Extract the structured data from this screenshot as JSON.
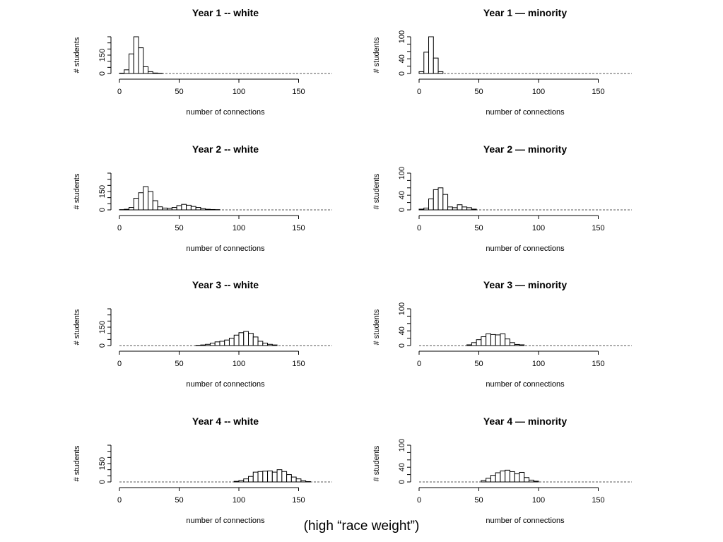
{
  "caption": "(high “race weight”)",
  "chart_data": [
    {
      "type": "bar",
      "title": "Year 1  --  white",
      "xlabel": "number of connections",
      "ylabel": "# students",
      "xticks": [
        0,
        50,
        100,
        150
      ],
      "yticks": [
        0,
        150
      ],
      "xlim": [
        0,
        178
      ],
      "ylim": [
        0,
        300
      ],
      "bin_start": 0,
      "bin_width": 4,
      "values": [
        3,
        30,
        160,
        310,
        210,
        55,
        15,
        4,
        2,
        0,
        0,
        0,
        0,
        0,
        0,
        0,
        0,
        0,
        0,
        0,
        0,
        0,
        0,
        0,
        0,
        0,
        0,
        0,
        0,
        0,
        0,
        0,
        0,
        0,
        0,
        0,
        0,
        0,
        0,
        0,
        0,
        0,
        0,
        0,
        0
      ]
    },
    {
      "type": "bar",
      "title": "Year 1  —  minority",
      "xlabel": "number of connections",
      "ylabel": "# students",
      "xticks": [
        0,
        50,
        100,
        150
      ],
      "yticks": [
        0,
        40,
        100
      ],
      "xlim": [
        0,
        178
      ],
      "ylim": [
        0,
        100
      ],
      "bin_start": 0,
      "bin_width": 4,
      "values": [
        5,
        58,
        100,
        42,
        5,
        0,
        0,
        0,
        0,
        0,
        0,
        0,
        0,
        0,
        0,
        0,
        0,
        0,
        0,
        0,
        0,
        0,
        0,
        0,
        0,
        0,
        0,
        0,
        0,
        0,
        0,
        0,
        0,
        0,
        0,
        0,
        0,
        0,
        0,
        0,
        0,
        0,
        0,
        0,
        0
      ]
    },
    {
      "type": "bar",
      "title": "Year 2  --  white",
      "xlabel": "number of connections",
      "ylabel": "# students",
      "xticks": [
        0,
        50,
        100,
        150
      ],
      "yticks": [
        0,
        150
      ],
      "xlim": [
        0,
        178
      ],
      "ylim": [
        0,
        300
      ],
      "bin_start": 0,
      "bin_width": 4,
      "values": [
        2,
        5,
        20,
        95,
        140,
        190,
        150,
        75,
        25,
        15,
        12,
        20,
        35,
        45,
        38,
        28,
        20,
        10,
        5,
        3,
        2,
        0,
        0,
        0,
        0,
        0,
        0,
        0,
        0,
        0,
        0,
        0,
        0,
        0,
        0,
        0,
        0,
        0,
        0,
        0,
        0,
        0,
        0,
        0,
        0
      ]
    },
    {
      "type": "bar",
      "title": "Year 2  —  minority",
      "xlabel": "number of connections",
      "ylabel": "# students",
      "xticks": [
        0,
        50,
        100,
        150
      ],
      "yticks": [
        0,
        40,
        100
      ],
      "xlim": [
        0,
        178
      ],
      "ylim": [
        0,
        100
      ],
      "bin_start": 0,
      "bin_width": 4,
      "values": [
        2,
        5,
        30,
        55,
        60,
        42,
        8,
        6,
        14,
        8,
        6,
        2,
        0,
        0,
        0,
        0,
        0,
        0,
        0,
        0,
        0,
        0,
        0,
        0,
        0,
        0,
        0,
        0,
        0,
        0,
        0,
        0,
        0,
        0,
        0,
        0,
        0,
        0,
        0,
        0,
        0,
        0,
        0,
        0,
        0
      ]
    },
    {
      "type": "bar",
      "title": "Year 3  --  white",
      "xlabel": "number of connections",
      "ylabel": "# students",
      "xticks": [
        0,
        50,
        100,
        150
      ],
      "yticks": [
        0,
        150
      ],
      "xlim": [
        0,
        178
      ],
      "ylim": [
        0,
        300
      ],
      "bin_start": 0,
      "bin_width": 4,
      "values": [
        0,
        0,
        0,
        0,
        0,
        0,
        0,
        0,
        0,
        0,
        0,
        0,
        0,
        0,
        0,
        0,
        2,
        5,
        10,
        20,
        30,
        35,
        45,
        60,
        85,
        105,
        115,
        100,
        70,
        35,
        20,
        10,
        5,
        0,
        0,
        0,
        0,
        0,
        0,
        0,
        0,
        0,
        0,
        0,
        0
      ]
    },
    {
      "type": "bar",
      "title": "Year 3  —  minority",
      "xlabel": "number of connections",
      "ylabel": "# students",
      "xticks": [
        0,
        50,
        100,
        150
      ],
      "yticks": [
        0,
        40,
        100
      ],
      "xlim": [
        0,
        178
      ],
      "ylim": [
        0,
        100
      ],
      "bin_start": 0,
      "bin_width": 4,
      "values": [
        0,
        0,
        0,
        0,
        0,
        0,
        0,
        0,
        0,
        0,
        2,
        8,
        16,
        24,
        32,
        30,
        29,
        32,
        18,
        8,
        3,
        2,
        0,
        0,
        0,
        0,
        0,
        0,
        0,
        0,
        0,
        0,
        0,
        0,
        0,
        0,
        0,
        0,
        0,
        0,
        0,
        0,
        0,
        0,
        0
      ]
    },
    {
      "type": "bar",
      "title": "Year 4  --  white",
      "xlabel": "number of connections",
      "ylabel": "# students",
      "xticks": [
        0,
        50,
        100,
        150
      ],
      "yticks": [
        0,
        150
      ],
      "xlim": [
        0,
        178
      ],
      "ylim": [
        0,
        300
      ],
      "bin_start": 0,
      "bin_width": 4,
      "values": [
        0,
        0,
        0,
        0,
        0,
        0,
        0,
        0,
        0,
        0,
        0,
        0,
        0,
        0,
        0,
        0,
        0,
        0,
        0,
        0,
        0,
        0,
        0,
        0,
        5,
        12,
        25,
        45,
        80,
        85,
        88,
        90,
        80,
        100,
        85,
        60,
        40,
        25,
        10,
        3,
        0,
        0,
        0,
        0,
        0
      ]
    },
    {
      "type": "bar",
      "title": "Year 4  —  minority",
      "xlabel": "number of connections",
      "ylabel": "# students",
      "xticks": [
        0,
        50,
        100,
        150
      ],
      "yticks": [
        0,
        40,
        100
      ],
      "xlim": [
        0,
        178
      ],
      "ylim": [
        0,
        100
      ],
      "bin_start": 0,
      "bin_width": 4,
      "values": [
        0,
        0,
        0,
        0,
        0,
        0,
        0,
        0,
        0,
        0,
        0,
        0,
        0,
        4,
        10,
        18,
        25,
        30,
        32,
        28,
        22,
        26,
        12,
        5,
        2,
        0,
        0,
        0,
        0,
        0,
        0,
        0,
        0,
        0,
        0,
        0,
        0,
        0,
        0,
        0,
        0,
        0,
        0,
        0,
        0
      ]
    }
  ]
}
